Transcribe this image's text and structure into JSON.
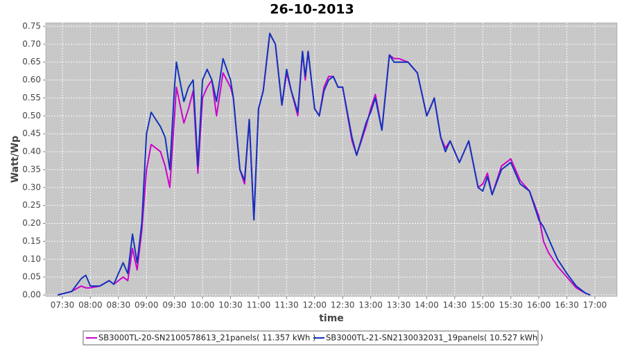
{
  "chart_data": {
    "type": "line",
    "title": "26-10-2013",
    "x_label": "time",
    "y_label": "Watt/Wp",
    "x": [
      "07:25",
      "07:40",
      "07:50",
      "07:55",
      "08:00",
      "08:10",
      "08:20",
      "08:25",
      "08:35",
      "08:40",
      "08:45",
      "08:50",
      "08:55",
      "09:00",
      "09:05",
      "09:15",
      "09:20",
      "09:25",
      "09:30",
      "09:32",
      "09:40",
      "09:45",
      "09:50",
      "09:55",
      "10:00",
      "10:05",
      "10:10",
      "10:15",
      "10:22",
      "10:30",
      "10:33",
      "10:40",
      "10:45",
      "10:50",
      "10:55",
      "11:00",
      "11:05",
      "11:12",
      "11:18",
      "11:25",
      "11:30",
      "11:35",
      "11:42",
      "11:47",
      "11:50",
      "11:53",
      "12:00",
      "12:05",
      "12:10",
      "12:15",
      "12:20",
      "12:25",
      "12:30",
      "12:40",
      "12:45",
      "12:55",
      "13:00",
      "13:05",
      "13:12",
      "13:20",
      "13:25",
      "13:30",
      "13:40",
      "13:50",
      "14:00",
      "14:05",
      "14:08",
      "14:15",
      "14:20",
      "14:25",
      "14:35",
      "14:45",
      "14:55",
      "15:00",
      "15:05",
      "15:10",
      "15:20",
      "15:30",
      "15:40",
      "15:50",
      "16:00",
      "16:05",
      "16:10",
      "16:20",
      "16:30",
      "16:40",
      "16:50",
      "16:55"
    ],
    "series": [
      {
        "name": "SB3000TL-20-SN2100578613_21panels( 11.357 kWh )",
        "color": "#cc00cc",
        "values": [
          0,
          0.01,
          0.025,
          0.02,
          0.02,
          0.025,
          0.04,
          0.03,
          0.05,
          0.04,
          0.13,
          0.07,
          0.18,
          0.35,
          0.42,
          0.4,
          0.36,
          0.3,
          0.5,
          0.58,
          0.48,
          0.52,
          0.57,
          0.34,
          0.55,
          0.58,
          0.6,
          0.5,
          0.62,
          0.58,
          0.55,
          0.35,
          0.31,
          0.49,
          0.21,
          0.52,
          0.57,
          0.73,
          0.7,
          0.53,
          0.62,
          0.57,
          0.5,
          0.68,
          0.6,
          0.68,
          0.52,
          0.5,
          0.58,
          0.61,
          0.61,
          0.58,
          0.58,
          0.43,
          0.39,
          0.47,
          0.52,
          0.56,
          0.46,
          0.67,
          0.66,
          0.66,
          0.65,
          0.62,
          0.5,
          0.53,
          0.55,
          0.44,
          0.41,
          0.43,
          0.37,
          0.43,
          0.3,
          0.31,
          0.34,
          0.28,
          0.36,
          0.38,
          0.32,
          0.29,
          0.22,
          0.15,
          0.12,
          0.08,
          0.05,
          0.02,
          0.005,
          0
        ]
      },
      {
        "name": "SB3000TL-21-SN2130032031_19panels( 10.527 kWh )",
        "color": "#1133bb",
        "values": [
          0,
          0.01,
          0.045,
          0.055,
          0.025,
          0.025,
          0.04,
          0.03,
          0.09,
          0.06,
          0.17,
          0.09,
          0.2,
          0.45,
          0.51,
          0.47,
          0.44,
          0.35,
          0.58,
          0.65,
          0.54,
          0.58,
          0.6,
          0.36,
          0.6,
          0.63,
          0.6,
          0.54,
          0.66,
          0.6,
          0.55,
          0.35,
          0.32,
          0.49,
          0.21,
          0.52,
          0.57,
          0.73,
          0.7,
          0.53,
          0.63,
          0.57,
          0.51,
          0.68,
          0.61,
          0.68,
          0.52,
          0.5,
          0.57,
          0.6,
          0.61,
          0.58,
          0.58,
          0.44,
          0.39,
          0.48,
          0.51,
          0.55,
          0.46,
          0.67,
          0.65,
          0.65,
          0.65,
          0.62,
          0.5,
          0.53,
          0.55,
          0.44,
          0.4,
          0.43,
          0.37,
          0.43,
          0.3,
          0.29,
          0.33,
          0.28,
          0.35,
          0.37,
          0.31,
          0.29,
          0.21,
          0.19,
          0.16,
          0.1,
          0.06,
          0.025,
          0.005,
          0
        ]
      }
    ],
    "xlim": [
      "07:30",
      "17:00"
    ],
    "xticks": [
      "07:30",
      "08:00",
      "08:30",
      "09:00",
      "09:30",
      "10:00",
      "10:30",
      "11:00",
      "11:30",
      "12:00",
      "12:30",
      "13:00",
      "13:30",
      "14:00",
      "14:30",
      "15:00",
      "15:30",
      "16:00",
      "16:30",
      "17:00"
    ],
    "ylim": [
      0,
      0.75
    ],
    "yticks": [
      {
        "value": 0,
        "label": "0.00"
      },
      {
        "value": 0.05,
        "label": "0.05"
      },
      {
        "value": 0.1,
        "label": "0.10"
      },
      {
        "value": 0.15,
        "label": "0.15"
      },
      {
        "value": 0.2,
        "label": "0.20"
      },
      {
        "value": 0.25,
        "label": "0.25"
      },
      {
        "value": 0.3,
        "label": "0.30"
      },
      {
        "value": 0.35,
        "label": "0.35"
      },
      {
        "value": 0.4,
        "label": "0.40"
      },
      {
        "value": 0.45,
        "label": "0.45"
      },
      {
        "value": 0.5,
        "label": "0.50"
      },
      {
        "value": 0.55,
        "label": "0.55"
      },
      {
        "value": 0.6,
        "label": "0.60"
      },
      {
        "value": 0.65,
        "label": "0.65"
      },
      {
        "value": 0.7,
        "label": "0.70"
      },
      {
        "value": 0.75,
        "label": "0.75"
      }
    ],
    "grid": true
  }
}
